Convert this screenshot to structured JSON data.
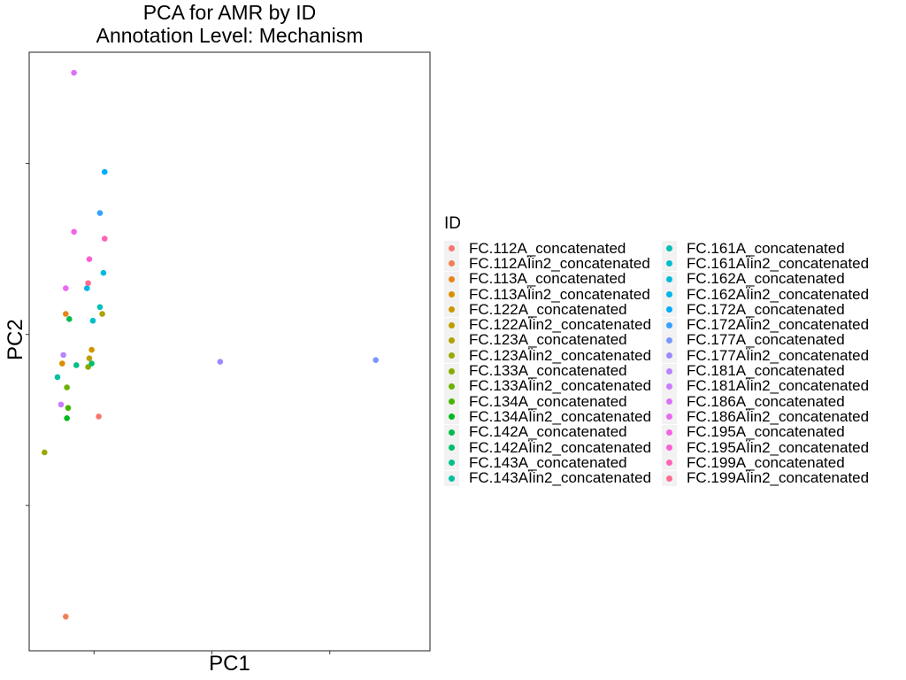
{
  "chart_data": {
    "type": "scatter",
    "title": [
      "PCA for AMR by ID",
      "Annotation Level: Mechanism"
    ],
    "xlabel": "PC1",
    "ylabel": "PC2",
    "xlim": [
      -0.55,
      2.85
    ],
    "ylim": [
      -1.85,
      1.65
    ],
    "x_ticks": [
      0,
      1,
      2
    ],
    "y_ticks": [
      -1,
      0,
      1
    ],
    "tick_labels_shown": false,
    "grid": false,
    "legend": {
      "title": "ID",
      "placement": "right",
      "columns": 2
    },
    "series": [
      {
        "name": "FC.112A_concatenated",
        "color": "#F8766D",
        "x": 0.04,
        "y": -0.48
      },
      {
        "name": "FC.112AÏin2_concatenated",
        "color": "#F17F55",
        "x": -0.24,
        "y": -1.65
      },
      {
        "name": "FC.113A_concatenated",
        "color": "#E7861B",
        "x": -0.24,
        "y": 0.12
      },
      {
        "name": "FC.113AÏin2_concatenated",
        "color": "#DB8E00",
        "x": -0.27,
        "y": -0.17
      },
      {
        "name": "FC.122A_concatenated",
        "color": "#CD9600",
        "x": -0.02,
        "y": -0.09
      },
      {
        "name": "FC.122AÏin2_concatenated",
        "color": "#BE9C00",
        "x": -0.04,
        "y": -0.14
      },
      {
        "name": "FC.123A_concatenated",
        "color": "#AEA200",
        "x": 0.07,
        "y": 0.12
      },
      {
        "name": "FC.123AÏin2_concatenated",
        "color": "#9AA800",
        "x": -0.42,
        "y": -0.69
      },
      {
        "name": "FC.133A_concatenated",
        "color": "#85AD00",
        "x": -0.05,
        "y": -0.19
      },
      {
        "name": "FC.133AÏin2_concatenated",
        "color": "#6BB100",
        "x": -0.23,
        "y": -0.31
      },
      {
        "name": "FC.134A_concatenated",
        "color": "#45B500",
        "x": -0.22,
        "y": -0.43
      },
      {
        "name": "FC.134AÏin2_concatenated",
        "color": "#00B81F",
        "x": -0.23,
        "y": -0.49
      },
      {
        "name": "FC.142A_concatenated",
        "color": "#00BB4E",
        "x": -0.21,
        "y": 0.09
      },
      {
        "name": "FC.142AÏin2_concatenated",
        "color": "#00BE6C",
        "x": -0.02,
        "y": -0.17
      },
      {
        "name": "FC.143A_concatenated",
        "color": "#00BF87",
        "x": -0.15,
        "y": -0.18
      },
      {
        "name": "FC.143AÏin2_concatenated",
        "color": "#00C0A0",
        "x": -0.31,
        "y": -0.25
      },
      {
        "name": "FC.161A_concatenated",
        "color": "#00C0B7",
        "x": 0.05,
        "y": 0.16
      },
      {
        "name": "FC.161AÏin2_concatenated",
        "color": "#00BECB",
        "x": -0.01,
        "y": 0.08
      },
      {
        "name": "FC.162A_concatenated",
        "color": "#00BBDD",
        "x": 0.08,
        "y": 0.36
      },
      {
        "name": "FC.162AÏin2_concatenated",
        "color": "#00B5EC",
        "x": -0.06,
        "y": 0.27
      },
      {
        "name": "FC.172A_concatenated",
        "color": "#00ACFC",
        "x": 0.09,
        "y": 0.95
      },
      {
        "name": "FC.172AÏin2_concatenated",
        "color": "#35A2FF",
        "x": 0.05,
        "y": 0.71
      },
      {
        "name": "FC.177A_concatenated",
        "color": "#7997FF",
        "x": 2.39,
        "y": -0.15
      },
      {
        "name": "FC.177AÏin2_concatenated",
        "color": "#9E8AFF",
        "x": 1.07,
        "y": -0.16
      },
      {
        "name": "FC.181A_concatenated",
        "color": "#B983FF",
        "x": -0.26,
        "y": -0.12
      },
      {
        "name": "FC.181AÏin2_concatenated",
        "color": "#CC7BFF",
        "x": -0.28,
        "y": -0.41
      },
      {
        "name": "FC.186A_concatenated",
        "color": "#DC71FA",
        "x": -0.17,
        "y": 1.53
      },
      {
        "name": "FC.186AÏin2_concatenated",
        "color": "#E96AF1",
        "x": -0.24,
        "y": 0.27
      },
      {
        "name": "FC.195A_concatenated",
        "color": "#F564E3",
        "x": -0.17,
        "y": 0.6
      },
      {
        "name": "FC.195AÏin2_concatenated",
        "color": "#FC61D3",
        "x": -0.04,
        "y": 0.44
      },
      {
        "name": "FC.199A_concatenated",
        "color": "#FF63B6",
        "x": 0.09,
        "y": 0.56
      },
      {
        "name": "FC.199AÏin2_concatenated",
        "color": "#FF6C91",
        "x": -0.05,
        "y": 0.3
      }
    ]
  }
}
